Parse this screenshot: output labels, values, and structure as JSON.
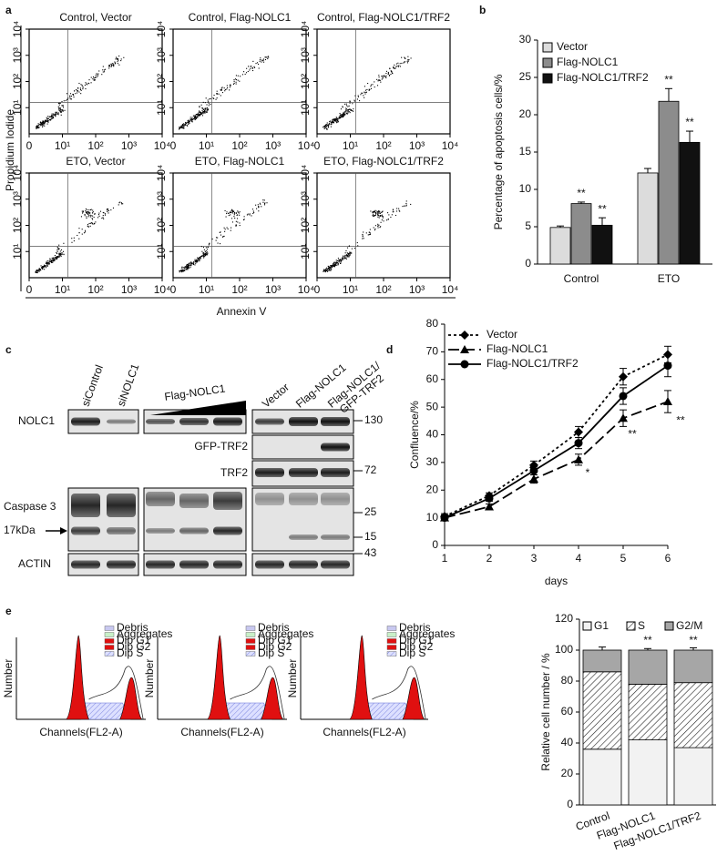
{
  "panel_labels": [
    "a",
    "b",
    "c",
    "d",
    "e"
  ],
  "flow_cytometry": {
    "plots": [
      {
        "title": "Control, Vector"
      },
      {
        "title": "Control, Flag-NOLC1"
      },
      {
        "title": "Control, Flag-NOLC1/TRF2"
      },
      {
        "title": "ETO, Vector"
      },
      {
        "title": "ETO, Flag-NOLC1"
      },
      {
        "title": "ETO, Flag-NOLC1/TRF2"
      }
    ],
    "ticks": [
      0,
      {
        "value": 10,
        "label": "10¹"
      },
      {
        "value": 100,
        "label": "10²"
      },
      {
        "value": 1000,
        "label": "10³"
      },
      {
        "value": 10000,
        "label": "10⁴"
      }
    ],
    "y_label": "Propidium Iodide",
    "x_label": "Annexin V"
  },
  "western_blot": {
    "lanes_left": [
      "siControl",
      "siNOLC1"
    ],
    "titration_label": "Flag-NOLC1",
    "lanes_right": [
      [
        "Vector"
      ],
      [
        "Flag-NOLC1"
      ],
      [
        "Flag-NOLC1/",
        "GFP-TRF2"
      ]
    ],
    "rows": [
      "NOLC1",
      "GFP-TRF2",
      "TRF2",
      "Caspase 3",
      "ACTIN"
    ],
    "arrow_label": "17kDa",
    "markers": [
      130,
      72,
      25,
      15,
      43
    ]
  },
  "cell_cycle": {
    "legend": [
      "Debris",
      "Aggregates",
      "Dip G1",
      "Dip G2",
      "Dip S"
    ],
    "y_label": "Number",
    "x_label": "Channels(FL2-A)"
  },
  "chart_data": [
    {
      "type": "bar",
      "y_label": "Percentage of apoptosis cells/%",
      "categories": [
        "Control",
        "ETO"
      ],
      "series": [
        {
          "name": "Vector",
          "color": "#dcdcdc",
          "values": [
            4.9,
            12.2
          ],
          "errors": [
            0.2,
            0.6
          ]
        },
        {
          "name": "Flag-NOLC1",
          "color": "#8c8c8c",
          "values": [
            8.1,
            21.8
          ],
          "errors": [
            0.2,
            1.7
          ],
          "annotations": [
            "**",
            "**"
          ]
        },
        {
          "name": "Flag-NOLC1/TRF2",
          "color": "#111111",
          "values": [
            5.2,
            16.3
          ],
          "errors": [
            1.0,
            1.5
          ],
          "annotations": [
            "**",
            "**"
          ]
        }
      ],
      "ylim": [
        0,
        30
      ],
      "yticks": [
        0,
        5,
        10,
        15,
        20,
        25,
        30
      ],
      "legend": "top-left"
    },
    {
      "type": "line",
      "x_label": "days",
      "y_label": "Confluence/%",
      "x": [
        1,
        2,
        3,
        4,
        5,
        6
      ],
      "series": [
        {
          "name": "Vector",
          "color": "#000000",
          "dash": "3,3",
          "marker": "diamond",
          "values": [
            10.5,
            18,
            29,
            41,
            61,
            69
          ],
          "errors": [
            1,
            1,
            1.5,
            2,
            3,
            3
          ]
        },
        {
          "name": "Flag-NOLC1",
          "color": "#000000",
          "dash": "12,5",
          "marker": "triangle",
          "values": [
            10,
            14,
            24,
            31,
            46,
            52
          ],
          "errors": [
            1,
            1,
            1.5,
            2,
            3,
            4
          ],
          "annotations": [
            null,
            null,
            null,
            "*",
            "**",
            "**"
          ]
        },
        {
          "name": "Flag-NOLC1/TRF2",
          "color": "#000000",
          "dash": "none",
          "marker": "circle",
          "values": [
            10,
            17,
            27,
            37,
            54,
            65
          ],
          "errors": [
            1,
            1,
            1.5,
            2,
            3,
            4
          ]
        }
      ],
      "xlim": [
        1,
        6
      ],
      "xticks": [
        1,
        2,
        3,
        4,
        5,
        6
      ],
      "ylim": [
        0,
        80
      ],
      "yticks": [
        0,
        10,
        20,
        30,
        40,
        50,
        60,
        70,
        80
      ],
      "legend": "top-left"
    },
    {
      "type": "stacked_bar",
      "y_label": "Relative cell number / %",
      "categories": [
        "Control",
        "Flag-NOLC1",
        "Flag-NOLC1/TRF2"
      ],
      "series": [
        {
          "name": "G1",
          "color": "#f2f2f2",
          "values": [
            36,
            42,
            37
          ],
          "errors": [
            1.5,
            1,
            2
          ]
        },
        {
          "name": "S",
          "color": "hatch",
          "values": [
            50,
            36,
            42
          ],
          "errors": [
            1,
            0.5,
            2
          ]
        },
        {
          "name": "G2/M",
          "color": "#a6a6a6",
          "values": [
            14,
            22,
            21
          ],
          "errors": [
            2,
            1,
            1.5
          ]
        }
      ],
      "annotations": [
        null,
        "**",
        "**"
      ],
      "ylim": [
        0,
        120
      ],
      "yticks": [
        0,
        20,
        40,
        60,
        80,
        100,
        120
      ],
      "legend": "top"
    }
  ]
}
